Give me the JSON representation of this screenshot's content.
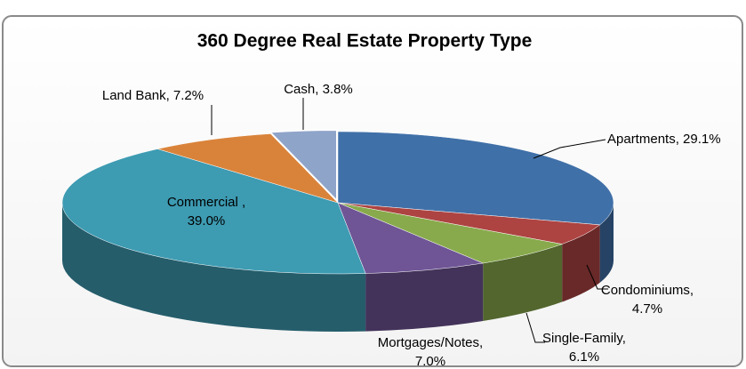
{
  "chart_data": {
    "type": "pie3d",
    "title": "360 Degree Real Estate Property Type",
    "categories": [
      "Apartments",
      "Condominiums",
      "Single-Family",
      "Mortgages/Notes",
      "Commercial",
      "Land Bank",
      "Cash"
    ],
    "values": [
      29.1,
      4.7,
      6.1,
      7.0,
      39.0,
      7.2,
      3.8
    ],
    "value_labels": [
      [
        "Apartments, 29.1%"
      ],
      [
        "Condominiums,",
        "4.7%"
      ],
      [
        "Single-Family,",
        "6.1%"
      ],
      [
        "Mortgages/Notes,",
        "7.0%"
      ],
      [
        "Commercial ,",
        "39.0%"
      ],
      [
        "Land Bank, 7.2%"
      ],
      [
        "Cash, 3.8%"
      ]
    ],
    "colors": [
      "#4070a8",
      "#ad4442",
      "#88aa4c",
      "#6f5596",
      "#3d9bb2",
      "#d9833a",
      "#8fa4c9"
    ]
  }
}
